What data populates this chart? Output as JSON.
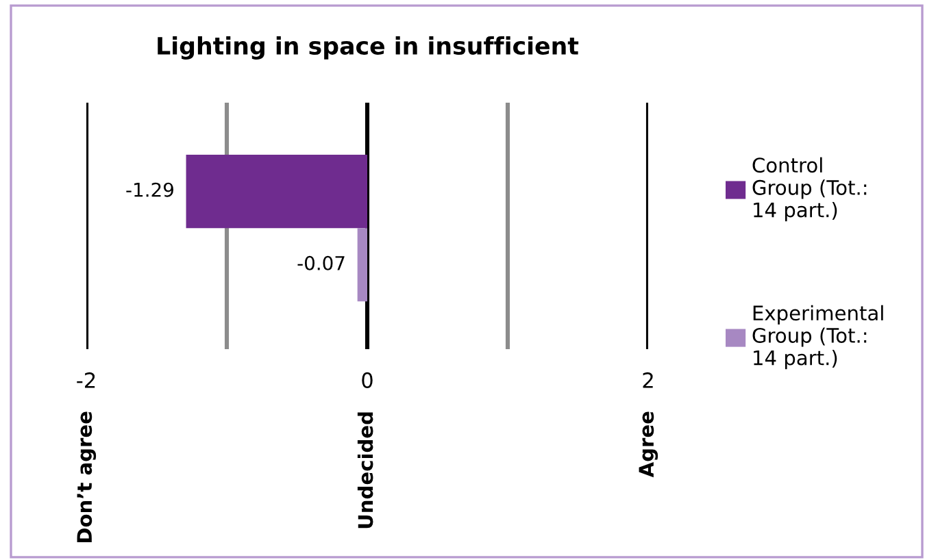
{
  "chart_data": {
    "type": "bar",
    "orientation": "horizontal",
    "title": "Lighting in space in insufficient",
    "categories": [
      null,
      null
    ],
    "series": [
      {
        "name": "Control\nGroup (Tot.:\n14 part.)",
        "color": "#6f2c8f",
        "values": [
          -1.29,
          null
        ]
      },
      {
        "name": "Experimental\nGroup (Tot.:\n14 part.)",
        "color": "#a788c2",
        "values": [
          null,
          -0.07
        ]
      }
    ],
    "xlim": [
      -2,
      2
    ],
    "xticks": [
      -2,
      {
        "value": -1,
        "label": null
      },
      0,
      {
        "value": 1,
        "label": null
      },
      2
    ],
    "annotations": [
      "Don’t agree",
      "Undecided",
      "Agree"
    ],
    "grid": "x",
    "data_labels": true,
    "legend": "right"
  }
}
